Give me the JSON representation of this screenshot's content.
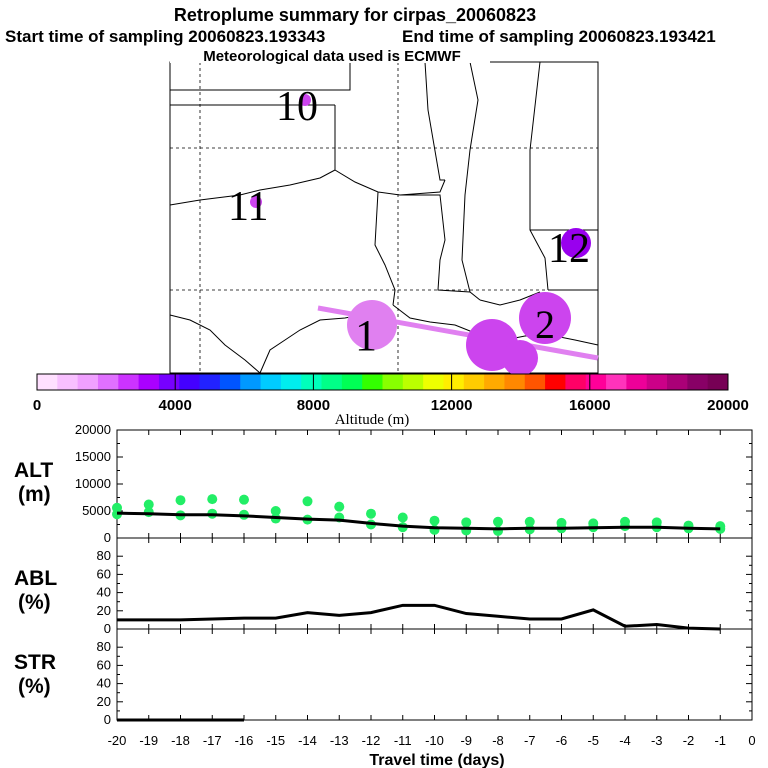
{
  "title": {
    "line1": "Retroplume summary for cirpas_20060823",
    "line2_start": "Start time of sampling 20060823.193343",
    "line2_end": "End time of sampling 20060823.193421",
    "line3": "Meteorological data used is ECMWF"
  },
  "colors": {
    "plume_light": "#e080f0",
    "plume_mid": "#cc44ee",
    "plume_dark": "#9900ee",
    "alt_dots": "#22ee66",
    "line": "#000000"
  },
  "map": {
    "labels": [
      {
        "text": "10",
        "day": 10
      },
      {
        "text": "11",
        "day": 11
      },
      {
        "text": "1",
        "day": 1
      },
      {
        "text": "2",
        "day": 2
      },
      {
        "text": "12",
        "day": 12
      }
    ]
  },
  "colorbar": {
    "label": "Altitude (m)",
    "ticks": [
      "0",
      "4000",
      "8000",
      "12000",
      "16000",
      "20000"
    ],
    "range": [
      0,
      20000
    ],
    "stops": [
      "#ffe0ff",
      "#f8c0ff",
      "#f0a0ff",
      "#e070ff",
      "#cc33ff",
      "#aa00ff",
      "#7700ff",
      "#4400ff",
      "#2222ff",
      "#0055ff",
      "#0099ff",
      "#00ccff",
      "#00eeee",
      "#00ffbb",
      "#00ff88",
      "#00ff55",
      "#33ff00",
      "#88ff00",
      "#bbff00",
      "#eeff00",
      "#ffee00",
      "#ffcc00",
      "#ffaa00",
      "#ff8800",
      "#ff5500",
      "#ff0000",
      "#ff0066",
      "#ff0099",
      "#ff33bb",
      "#ee0099",
      "#cc0088",
      "#aa0077",
      "#880066",
      "#770055"
    ]
  },
  "chart_data": [
    {
      "type": "line",
      "panel": "ALT",
      "ylabel_line1": "ALT",
      "ylabel_line2": "(m)",
      "ylim": [
        0,
        20000
      ],
      "yticks": [
        "20000",
        "15000",
        "10000",
        "5000",
        "0"
      ],
      "x": [
        -20,
        -19,
        -18,
        -17,
        -16,
        -15,
        -14,
        -13,
        -12,
        -11,
        -10,
        -9,
        -8,
        -7,
        -6,
        -5,
        -4,
        -3,
        -2,
        -1
      ],
      "series": [
        {
          "name": "mean altitude",
          "values": [
            4600,
            4500,
            4300,
            4300,
            4100,
            3800,
            3500,
            3300,
            2700,
            2200,
            1900,
            1800,
            1700,
            1800,
            1800,
            1900,
            2000,
            2000,
            1800,
            1700
          ]
        }
      ],
      "scatter": [
        {
          "x": -20,
          "y": 4400
        },
        {
          "x": -20,
          "y": 5600
        },
        {
          "x": -19,
          "y": 4800
        },
        {
          "x": -19,
          "y": 6200
        },
        {
          "x": -18,
          "y": 4200
        },
        {
          "x": -18,
          "y": 7000
        },
        {
          "x": -17,
          "y": 4500
        },
        {
          "x": -17,
          "y": 7200
        },
        {
          "x": -16,
          "y": 4300
        },
        {
          "x": -16,
          "y": 7100
        },
        {
          "x": -15,
          "y": 3600
        },
        {
          "x": -15,
          "y": 5000
        },
        {
          "x": -14,
          "y": 3400
        },
        {
          "x": -14,
          "y": 6800
        },
        {
          "x": -13,
          "y": 3800
        },
        {
          "x": -13,
          "y": 5800
        },
        {
          "x": -12,
          "y": 2500
        },
        {
          "x": -12,
          "y": 4500
        },
        {
          "x": -11,
          "y": 2000
        },
        {
          "x": -11,
          "y": 3800
        },
        {
          "x": -10,
          "y": 1500
        },
        {
          "x": -10,
          "y": 3200
        },
        {
          "x": -9,
          "y": 1400
        },
        {
          "x": -9,
          "y": 2900
        },
        {
          "x": -8,
          "y": 1300
        },
        {
          "x": -8,
          "y": 3000
        },
        {
          "x": -7,
          "y": 1600
        },
        {
          "x": -7,
          "y": 3000
        },
        {
          "x": -6,
          "y": 1800
        },
        {
          "x": -6,
          "y": 2800
        },
        {
          "x": -5,
          "y": 2000
        },
        {
          "x": -5,
          "y": 2700
        },
        {
          "x": -4,
          "y": 2200
        },
        {
          "x": -4,
          "y": 3000
        },
        {
          "x": -3,
          "y": 2000
        },
        {
          "x": -3,
          "y": 2900
        },
        {
          "x": -2,
          "y": 1800
        },
        {
          "x": -2,
          "y": 2300
        },
        {
          "x": -1,
          "y": 1700
        },
        {
          "x": -1,
          "y": 2200
        }
      ]
    },
    {
      "type": "line",
      "panel": "ABL",
      "ylabel_line1": "ABL",
      "ylabel_line2": "(%)",
      "ylim": [
        0,
        100
      ],
      "yticks": [
        "80",
        "60",
        "40",
        "20",
        "0"
      ],
      "x": [
        -20,
        -19,
        -18,
        -17,
        -16,
        -15,
        -14,
        -13,
        -12,
        -11,
        -10,
        -9,
        -8,
        -7,
        -6,
        -5,
        -4,
        -3,
        -2,
        -1
      ],
      "series": [
        {
          "name": "ABL fraction",
          "values": [
            10,
            10,
            10,
            11,
            12,
            12,
            18,
            15,
            18,
            26,
            26,
            17,
            14,
            11,
            11,
            21,
            3,
            5,
            1,
            0
          ]
        }
      ]
    },
    {
      "type": "line",
      "panel": "STR",
      "ylabel_line1": "STR",
      "ylabel_line2": "(%)",
      "ylim": [
        0,
        100
      ],
      "yticks": [
        "80",
        "60",
        "40",
        "20",
        "0"
      ],
      "x": [
        -20,
        -19,
        -18,
        -17,
        -16
      ],
      "series": [
        {
          "name": "stratospheric fraction",
          "values": [
            0,
            0,
            0,
            0,
            0
          ]
        }
      ]
    }
  ],
  "xaxis": {
    "label": "Travel time (days)",
    "ticks": [
      "-20",
      "-19",
      "-18",
      "-17",
      "-16",
      "-15",
      "-14",
      "-13",
      "-12",
      "-11",
      "-10",
      "-9",
      "-8",
      "-7",
      "-6",
      "-5",
      "-4",
      "-3",
      "-2",
      "-1",
      "0"
    ]
  }
}
